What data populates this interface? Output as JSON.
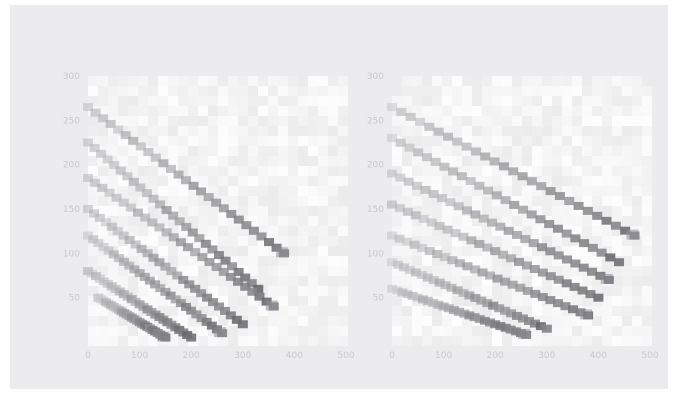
{
  "chart_data": [
    {
      "type": "heatmap",
      "title": "",
      "ylabel": "",
      "xlabel": "",
      "xlim": [
        0,
        500
      ],
      "ylim": [
        0,
        300
      ],
      "x_ticks": [
        0,
        100,
        200,
        300,
        400,
        500
      ],
      "x_tick_labels": [
        "0",
        "100",
        "200",
        "300",
        "400",
        "500"
      ],
      "y_ticks": [
        50,
        100,
        150,
        200,
        250,
        300
      ],
      "y_tick_labels": [
        "50",
        "100",
        "150",
        "200",
        "250",
        "300"
      ],
      "grid": false,
      "description_bands": [
        {
          "x_start": 0,
          "y_start": 265,
          "x_end": 380,
          "y_end": 100
        },
        {
          "x_start": 0,
          "y_start": 225,
          "x_end": 330,
          "y_end": 60
        },
        {
          "x_start": 0,
          "y_start": 185,
          "x_end": 360,
          "y_end": 40
        },
        {
          "x_start": 0,
          "y_start": 150,
          "x_end": 300,
          "y_end": 20
        },
        {
          "x_start": 0,
          "y_start": 120,
          "x_end": 260,
          "y_end": 10
        },
        {
          "x_start": 0,
          "y_start": 80,
          "x_end": 200,
          "y_end": 5
        },
        {
          "x_start": 20,
          "y_start": 50,
          "x_end": 150,
          "y_end": 5
        }
      ]
    },
    {
      "type": "heatmap",
      "title": "",
      "ylabel": "",
      "xlabel": "",
      "xlim": [
        0,
        500
      ],
      "ylim": [
        0,
        300
      ],
      "x_ticks": [
        0,
        100,
        200,
        300,
        400,
        500
      ],
      "x_tick_labels": [
        "0",
        "100",
        "200",
        "300",
        "400",
        "500"
      ],
      "y_ticks": [
        50,
        100,
        150,
        200,
        250,
        300
      ],
      "y_tick_labels": [
        "50",
        "100",
        "150",
        "200",
        "250",
        "300"
      ],
      "grid": false,
      "description_bands": [
        {
          "x_start": 0,
          "y_start": 265,
          "x_end": 470,
          "y_end": 120
        },
        {
          "x_start": 0,
          "y_start": 230,
          "x_end": 440,
          "y_end": 90
        },
        {
          "x_start": 0,
          "y_start": 190,
          "x_end": 420,
          "y_end": 70
        },
        {
          "x_start": 0,
          "y_start": 155,
          "x_end": 400,
          "y_end": 50
        },
        {
          "x_start": 0,
          "y_start": 120,
          "x_end": 380,
          "y_end": 30
        },
        {
          "x_start": 0,
          "y_start": 90,
          "x_end": 300,
          "y_end": 15
        },
        {
          "x_start": 0,
          "y_start": 60,
          "x_end": 260,
          "y_end": 8
        }
      ]
    }
  ]
}
